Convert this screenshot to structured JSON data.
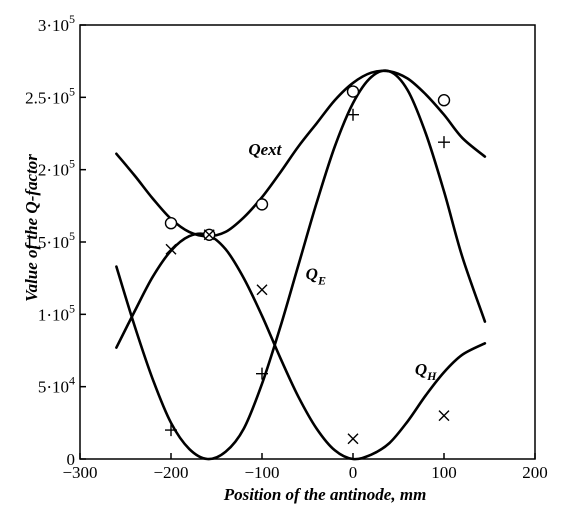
{
  "chart_data": {
    "type": "line",
    "title": "",
    "xlabel": "Position of the antinode, mm",
    "ylabel": "Value of the Q-factor",
    "xlim": [
      -300,
      200
    ],
    "ylim": [
      0,
      300000
    ],
    "grid": false,
    "x_ticks": [
      {
        "value": -300,
        "label": "−300"
      },
      {
        "value": -200,
        "label": "−200"
      },
      {
        "value": -100,
        "label": "−100"
      },
      {
        "value": 0,
        "label": "0"
      },
      {
        "value": 100,
        "label": "100"
      },
      {
        "value": 200,
        "label": "200"
      }
    ],
    "y_ticks": [
      {
        "value": 0,
        "mant": "0",
        "exp": ""
      },
      {
        "value": 50000,
        "mant": "5·10",
        "exp": "4"
      },
      {
        "value": 100000,
        "mant": "1·10",
        "exp": "5"
      },
      {
        "value": 150000,
        "mant": "1.5·10",
        "exp": "5"
      },
      {
        "value": 200000,
        "mant": "2·10",
        "exp": "5"
      },
      {
        "value": 250000,
        "mant": "2.5·10",
        "exp": "5"
      },
      {
        "value": 300000,
        "mant": "3·10",
        "exp": "5"
      }
    ],
    "series": [
      {
        "name": "Qext",
        "label_main": "Qext",
        "label_sub": "",
        "label_at": [
          -115,
          210000
        ],
        "line": {
          "x": [
            -260,
            -240,
            -220,
            -200,
            -180,
            -160,
            -140,
            -120,
            -100,
            -80,
            -60,
            -40,
            -20,
            0,
            20,
            40,
            60,
            80,
            100,
            120,
            145
          ],
          "y": [
            211000,
            196000,
            180000,
            166000,
            157000,
            154000,
            157000,
            167000,
            181000,
            198000,
            216000,
            232000,
            248000,
            260000,
            267000,
            268000,
            263000,
            252000,
            238000,
            222000,
            209000
          ]
        },
        "markers": {
          "symbol": "circle",
          "x": [
            -200,
            -158,
            -100,
            0,
            100
          ],
          "y": [
            163000,
            155000,
            176000,
            254000,
            248000
          ]
        }
      },
      {
        "name": "QE",
        "label_main": "Q",
        "label_sub": "E",
        "label_at": [
          -52,
          124000
        ],
        "line": {
          "x": [
            -260,
            -240,
            -220,
            -200,
            -180,
            -160,
            -140,
            -120,
            -100,
            -80,
            -60,
            -40,
            -20,
            0,
            20,
            40,
            60,
            80,
            100,
            120,
            145
          ],
          "y": [
            133000,
            92000,
            55000,
            25000,
            7000,
            0,
            5000,
            21000,
            52000,
            91000,
            134000,
            177000,
            216000,
            246000,
            264000,
            268000,
            255000,
            225000,
            185000,
            140000,
            95000
          ]
        },
        "markers": {
          "symbol": "plus",
          "x": [
            -200,
            -100,
            0,
            100
          ],
          "y": [
            20000,
            59000,
            238000,
            219000
          ]
        }
      },
      {
        "name": "QH",
        "label_main": "Q",
        "label_sub": "H",
        "label_at": [
          68,
          58000
        ],
        "line": {
          "x": [
            -260,
            -240,
            -220,
            -200,
            -180,
            -160,
            -140,
            -120,
            -100,
            -80,
            -60,
            -40,
            -20,
            0,
            20,
            40,
            60,
            80,
            100,
            120,
            145
          ],
          "y": [
            77000,
            102000,
            126000,
            144000,
            154000,
            155000,
            145000,
            125000,
            99000,
            70000,
            43000,
            21000,
            6000,
            0,
            3000,
            11000,
            26000,
            44000,
            60000,
            72000,
            80000
          ]
        },
        "markers": {
          "symbol": "cross",
          "x": [
            -200,
            -158,
            -100,
            0,
            100
          ],
          "y": [
            145000,
            155000,
            117000,
            14000,
            30000
          ]
        }
      }
    ]
  }
}
